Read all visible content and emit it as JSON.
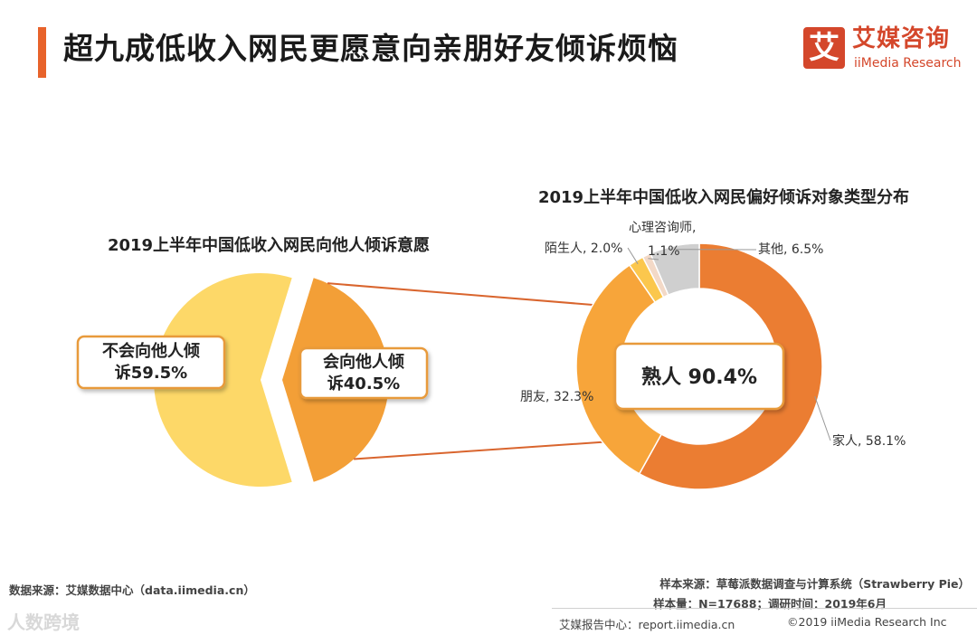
{
  "header": {
    "title": "超九成低收入网民更愿意向亲朋好友倾诉烦恼"
  },
  "logo": {
    "icon_glyph": "艾",
    "name_cn": "艾媒咨询",
    "name_en": "iiMedia Research"
  },
  "colors": {
    "accent": "#e8632b",
    "pie_no": "#fdd868",
    "pie_yes": "#f39f37",
    "family": "#eb7d32",
    "friends": "#f7a53a",
    "strangers": "#fbc74d",
    "counselor": "#f3d9c7",
    "other": "#cfcfcf",
    "connector": "#d9652e",
    "label_border": "#e89a3a"
  },
  "chart_data": [
    {
      "type": "pie",
      "title": "2019上半年中国低收入网民向他人倾诉意愿",
      "slices": [
        {
          "name": "不会向他人倾诉",
          "value": 59.5,
          "label_line1": "不会向他人倾",
          "label_line2": "诉59.5%"
        },
        {
          "name": "会向他人倾诉",
          "value": 40.5,
          "label_line1": "会向他人倾",
          "label_line2": "诉40.5%"
        }
      ]
    },
    {
      "type": "pie",
      "subtype": "donut",
      "title": "2019上半年中国低收入网民偏好倾诉对象类型分布",
      "center_label": "熟人 90.4%",
      "slices": [
        {
          "name": "家人",
          "value": 58.1,
          "label": "家人, 58.1%"
        },
        {
          "name": "朋友",
          "value": 32.3,
          "label": "朋友, 32.3%"
        },
        {
          "name": "陌生人",
          "value": 2.0,
          "label": "陌生人, 2.0%"
        },
        {
          "name": "心理咨询师",
          "value": 1.1,
          "label_line1": "心理咨询师,",
          "label_line2": "1.1%"
        },
        {
          "name": "其他",
          "value": 6.5,
          "label": "其他, 6.5%"
        }
      ]
    }
  ],
  "footer": {
    "source": "数据来源：艾媒数据中心（data.iimedia.cn）",
    "sample_source": "样本来源：草莓派数据调查与计算系统（Strawberry Pie）",
    "sample_size": "样本量：N=17688；调研时间：2019年6月",
    "report_center": "艾媒报告中心：report.iimedia.cn",
    "copyright": "©2019  iiMedia Research  Inc",
    "watermark": "人数跨境"
  }
}
